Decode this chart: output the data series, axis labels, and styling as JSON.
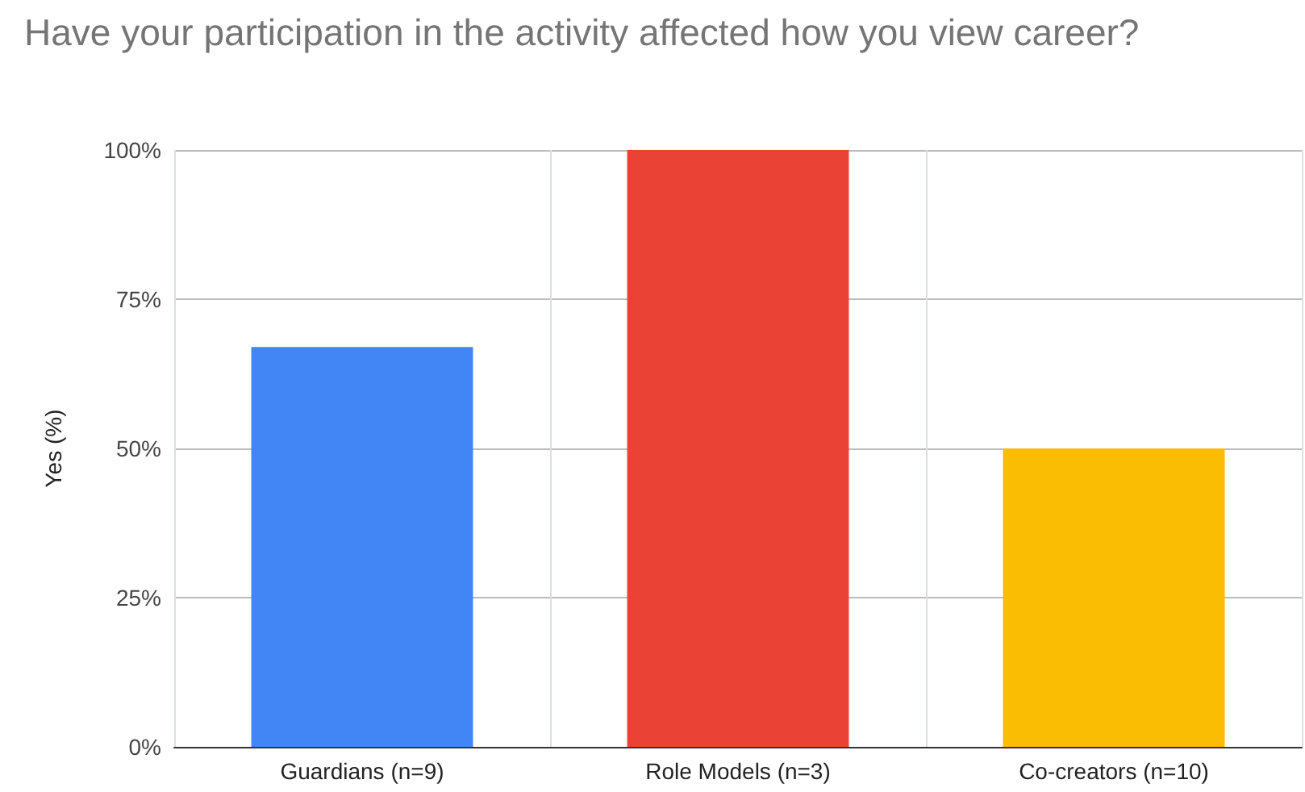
{
  "chart_data": {
    "type": "bar",
    "title": "Have your participation in the activity affected how you view career?",
    "ylabel": "Yes (%)",
    "categories": [
      "Guardians (n=9)",
      "Role Models (n=3)",
      "Co-creators (n=10)"
    ],
    "values": [
      67,
      100,
      50
    ],
    "colors": [
      "#4285f4",
      "#ea4335",
      "#fbbc04"
    ],
    "ylim": [
      0,
      100
    ],
    "yticks": [
      {
        "value": 0,
        "label": "0%"
      },
      {
        "value": 25,
        "label": "25%"
      },
      {
        "value": 50,
        "label": "50%"
      },
      {
        "value": 75,
        "label": "75%"
      },
      {
        "value": 100,
        "label": "100%"
      }
    ],
    "grid": true
  }
}
